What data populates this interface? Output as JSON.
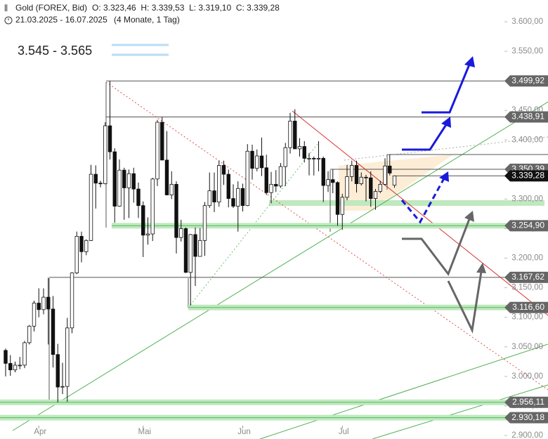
{
  "chart_data": {
    "type": "candlestick",
    "title": "Gold (FOREX, Bid)",
    "ohlc_text": "O: 3.323,46  H: 3.339,53  L: 3.319,10  C: 3.339,28",
    "subtitle": "21.03.2025 - 16.07.2025",
    "period": "(4 Monate, 1 Tag)",
    "annotation": "3.545 - 3.565",
    "categories": [
      null,
      null,
      null,
      null,
      null,
      null,
      null,
      "Apr",
      null,
      null,
      null,
      null,
      null,
      null,
      null,
      null,
      null,
      null,
      null,
      null,
      null,
      null,
      null,
      null,
      null,
      null,
      null,
      null,
      null,
      "Mai",
      null,
      null,
      null,
      null,
      null,
      null,
      null,
      null,
      null,
      null,
      null,
      null,
      null,
      null,
      null,
      null,
      null,
      null,
      null,
      null,
      "Jun",
      null,
      null,
      null,
      null,
      null,
      null,
      null,
      null,
      null,
      null,
      null,
      null,
      null,
      null,
      null,
      null,
      null,
      null,
      null,
      null,
      "Jul",
      null,
      null,
      null,
      null,
      null,
      null,
      null,
      null,
      null,
      null,
      null
    ],
    "open": [
      3044,
      3022,
      3011,
      3019,
      3019,
      3057,
      3085,
      3124,
      3113,
      3134,
      3114,
      3037,
      2982,
      2983,
      3082,
      3175,
      3237,
      3211,
      3230,
      3342,
      3327,
      3326,
      3424,
      3380,
      3288,
      3349,
      3319,
      3343,
      3317,
      3289,
      3239,
      3241,
      3334,
      3430,
      3366,
      3307,
      3325,
      3235,
      3250,
      3176,
      3240,
      3203,
      3230,
      3289,
      3314,
      3295,
      3357,
      3342,
      3301,
      3288,
      3318,
      3289,
      3381,
      3352,
      3373,
      3353,
      3311,
      3325,
      3322,
      3355,
      3387,
      3432,
      3385,
      3389,
      3369,
      3369,
      3368,
      3369,
      3323,
      3333,
      3328,
      3274,
      3303,
      3338,
      3357,
      3326,
      3337,
      3336,
      3301,
      3313,
      3325,
      3356,
      3323.46
    ],
    "high": [
      3047,
      3036,
      3025,
      3033,
      3060,
      3087,
      3128,
      3149,
      3149,
      3167,
      3136,
      3055,
      3023,
      3099,
      3176,
      3245,
      3245,
      3232,
      3358,
      3357,
      3331,
      3430,
      3499.92,
      3386,
      3367,
      3353,
      3350,
      3353,
      3328,
      3296,
      3269,
      3336,
      3434,
      3438.91,
      3415,
      3347,
      3330,
      3265,
      3252,
      3241,
      3252,
      3251,
      3295,
      3345,
      3345,
      3365,
      3365,
      3350,
      3325,
      3330,
      3326,
      3393,
      3392,
      3384,
      3404,
      3375,
      3346,
      3349,
      3361,
      3395,
      3446,
      3452,
      3403,
      3398,
      3378,
      3372,
      3398,
      3372,
      3347,
      3350,
      3330,
      3309,
      3358,
      3365,
      3365,
      3345,
      3341,
      3347,
      3317,
      3331,
      3369,
      3375,
      3339.53
    ],
    "low": [
      3000,
      3001,
      3007,
      3012,
      3014,
      3054,
      3076,
      3100,
      3105,
      3054,
      3015,
      2956.11,
      2970,
      2957,
      3073,
      3173,
      3193,
      3205,
      3229,
      3284,
      3320,
      3325,
      3367,
      3260,
      3287,
      3265,
      3268,
      3294,
      3268,
      3202,
      3223,
      3229,
      3322,
      3366,
      3307,
      3300,
      3208,
      3228,
      3175,
      3120,
      3153,
      3206,
      3204,
      3285,
      3278,
      3287,
      3324,
      3286,
      3285,
      3245,
      3279,
      3288,
      3333,
      3347,
      3339,
      3307,
      3293,
      3312,
      3319,
      3322,
      3377,
      3385,
      3372,
      3362,
      3340,
      3340,
      3347,
      3295,
      3312,
      3310,
      3255,
      3248,
      3298,
      3330,
      3311,
      3323,
      3296,
      3287,
      3282,
      3310,
      3323,
      3340,
      3319.1
    ],
    "close": [
      3022,
      3011,
      3019,
      3019,
      3057,
      3085,
      3124,
      3113,
      3134,
      3114,
      3037,
      2982,
      2983,
      3082,
      3175,
      3237,
      3211,
      3230,
      3342,
      3327,
      3326,
      3424,
      3380,
      3288,
      3349,
      3319,
      3343,
      3317,
      3289,
      3239,
      3241,
      3334,
      3430,
      3366,
      3307,
      3325,
      3235,
      3250,
      3176,
      3240,
      3203,
      3230,
      3289,
      3314,
      3295,
      3357,
      3342,
      3301,
      3288,
      3318,
      3289,
      3381,
      3352,
      3373,
      3353,
      3311,
      3325,
      3322,
      3355,
      3387,
      3432,
      3385,
      3389,
      3369,
      3369,
      3368,
      3369,
      3323,
      3333,
      3328,
      3274,
      3303,
      3338,
      3357,
      3326,
      3337,
      3336,
      3301,
      3313,
      3325,
      3356,
      3344,
      3339.28
    ],
    "levels": [
      {
        "value": 3499.92,
        "label": "3.499,92",
        "color": "#666666"
      },
      {
        "value": 3438.91,
        "label": "3.438,91",
        "color": "#666666"
      },
      {
        "value": 3350.39,
        "label": "3.350,39",
        "color": "#666666"
      },
      {
        "value": 3339.28,
        "label": "3.339,28",
        "color": "#111111"
      },
      {
        "value": 3254.9,
        "label": "3.254,90",
        "color": "#666666"
      },
      {
        "value": 3167.62,
        "label": "3.167,62",
        "color": "#666666"
      },
      {
        "value": 3116.6,
        "label": "3.116,60",
        "color": "#666666"
      },
      {
        "value": 2956.11,
        "label": "2.956,11",
        "color": "#666666"
      },
      {
        "value": 2930.18,
        "label": "2.930,18",
        "color": "#666666"
      }
    ],
    "ylim": [
      2900,
      3600
    ],
    "yticks": [
      {
        "value": 2900,
        "label": "2.900,00"
      },
      {
        "value": 2950,
        "label": "2.950,00"
      },
      {
        "value": 3000,
        "label": "3.000,00"
      },
      {
        "value": 3050,
        "label": "3.050,00"
      },
      {
        "value": 3100,
        "label": "3.100,00"
      },
      {
        "value": 3150,
        "label": "3.150,00"
      },
      {
        "value": 3200,
        "label": "3.200,00"
      },
      {
        "value": 3250,
        "label": "3.250,00"
      },
      {
        "value": 3300,
        "label": "3.300,00"
      },
      {
        "value": 3350,
        "label": "3.350,00"
      },
      {
        "value": 3400,
        "label": "3.400,00"
      },
      {
        "value": 3450,
        "label": "3.450,00"
      },
      {
        "value": 3500,
        "label": "3.500,00"
      },
      {
        "value": 3550,
        "label": "3.550,00"
      },
      {
        "value": 3600,
        "label": "3.600,00"
      }
    ],
    "up_color": "#ffffff",
    "down_color": "#111111"
  }
}
